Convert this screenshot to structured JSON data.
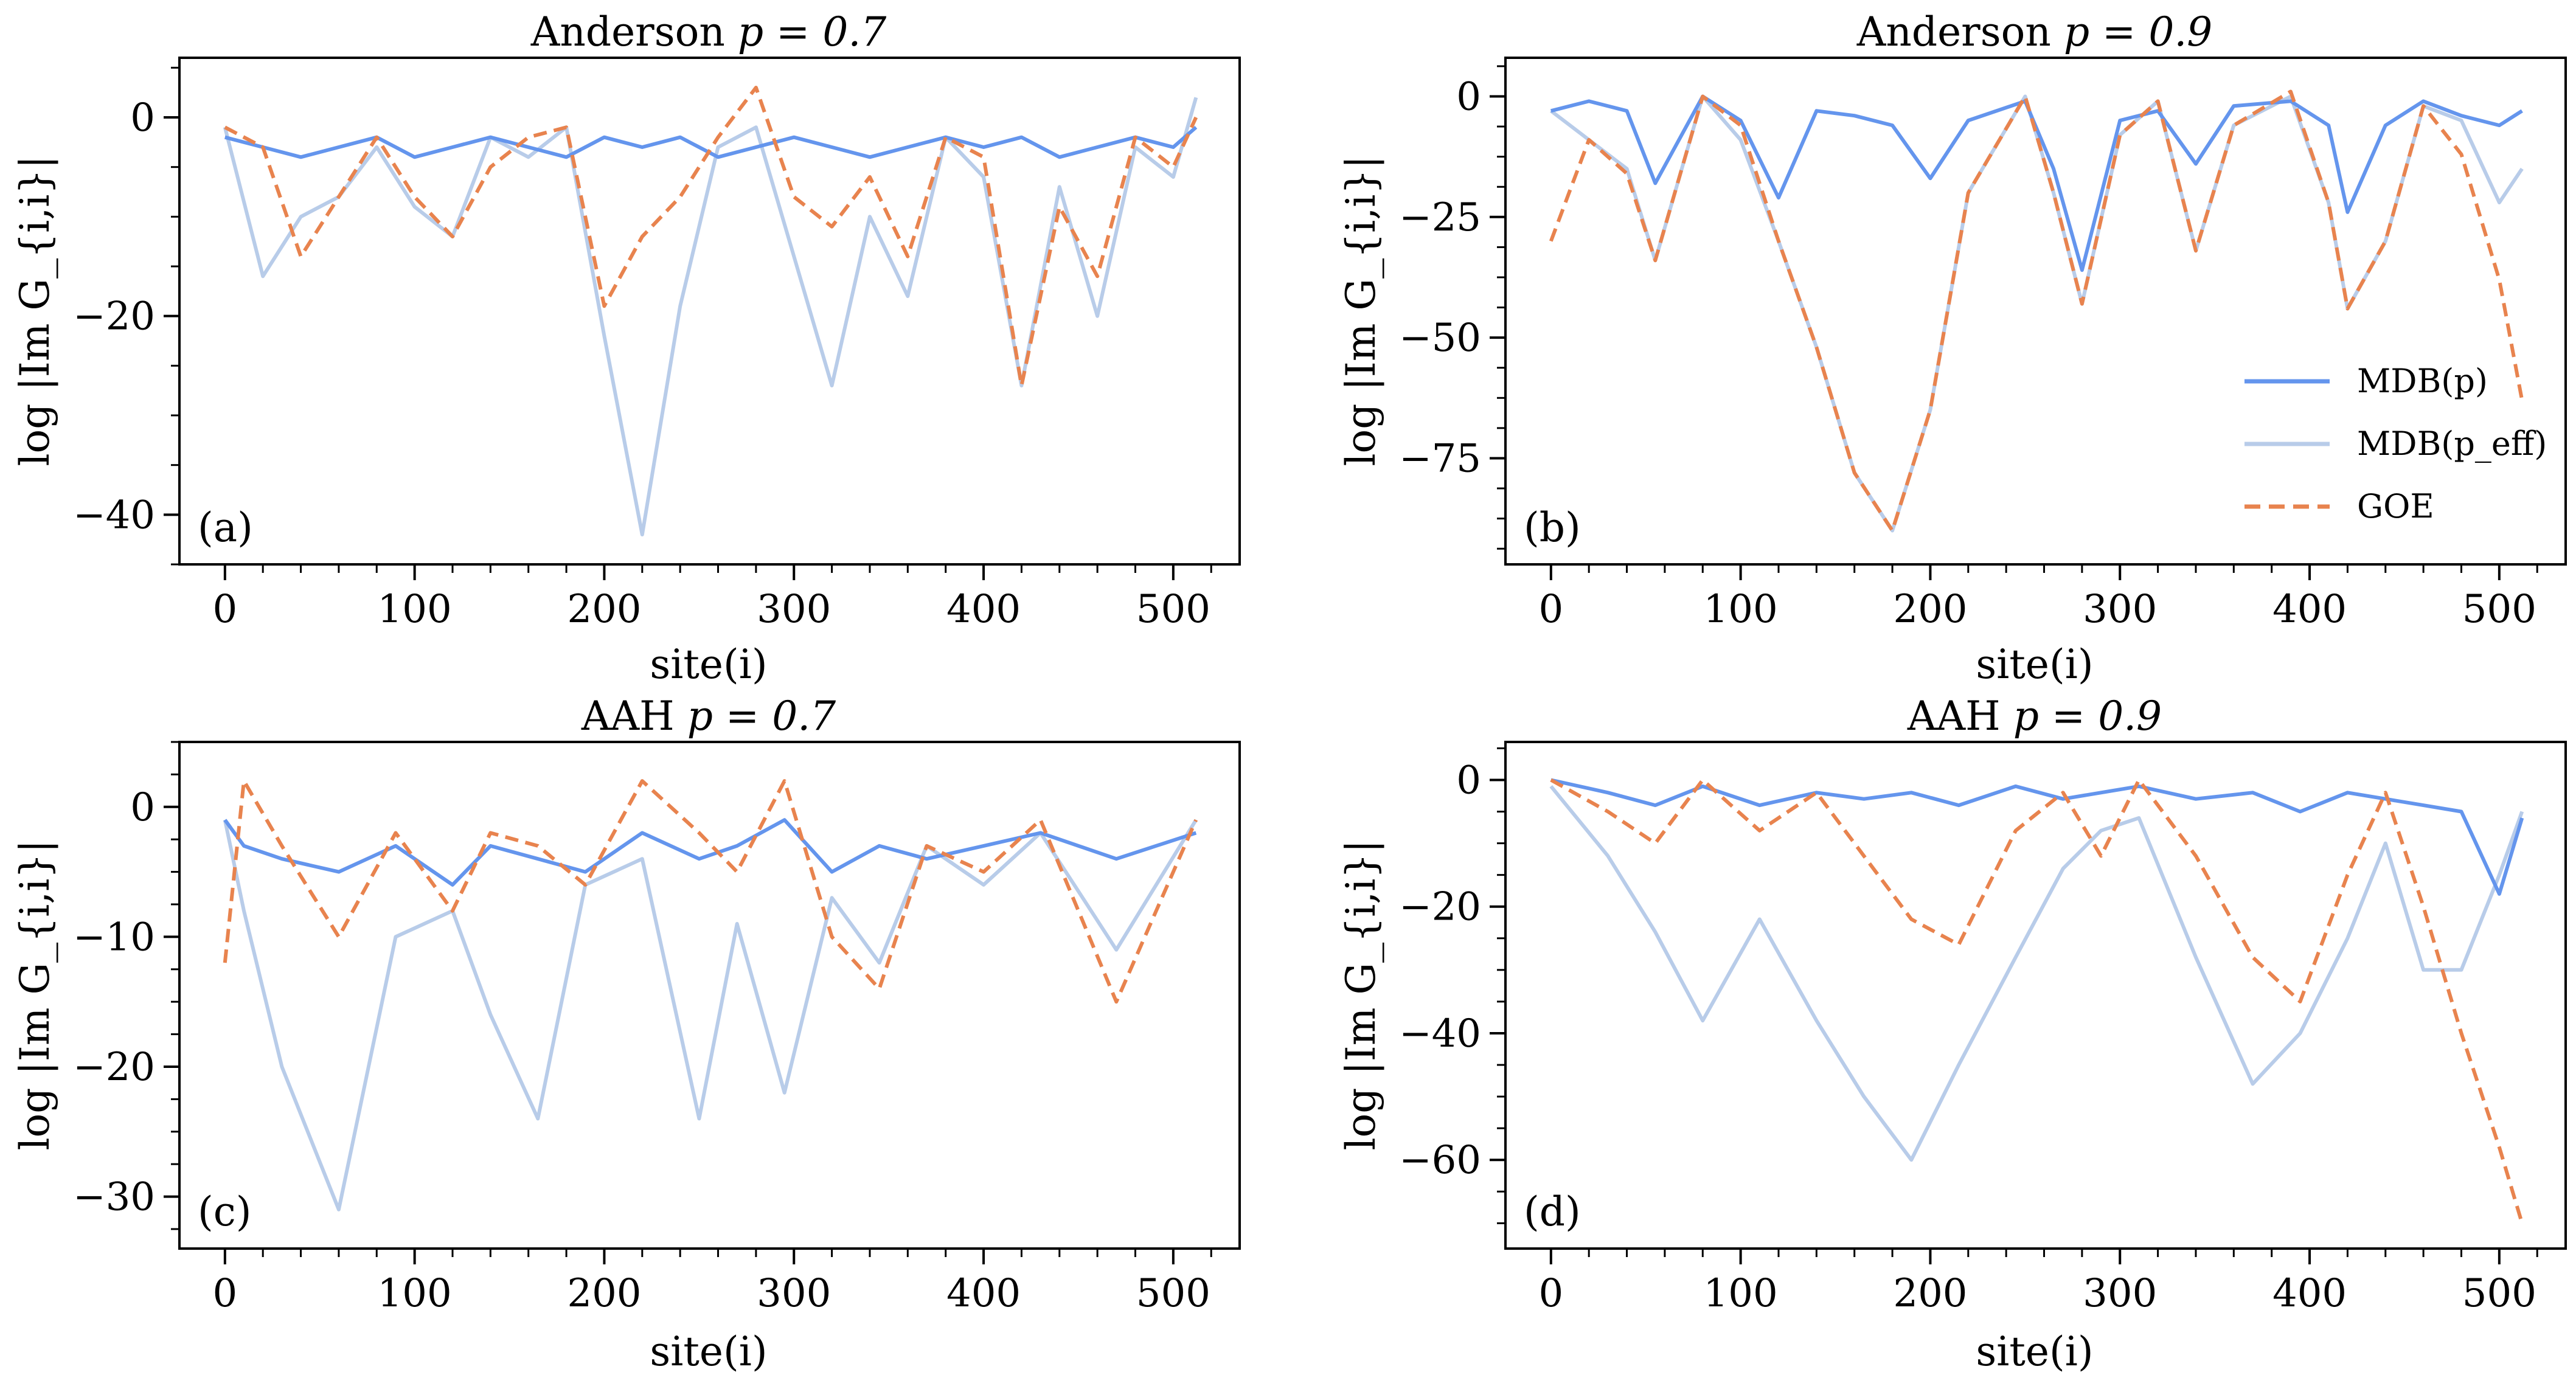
{
  "figure": {
    "legend": {
      "entries": [
        {
          "label": "MDB(p)",
          "series": "mdb_p"
        },
        {
          "label": "MDB(p_eff)",
          "series": "mdb_peff"
        },
        {
          "label": "GOE",
          "series": "goe"
        }
      ]
    },
    "colors": {
      "mdb_p": "#6495ED",
      "mdb_peff": "#B8CCE9",
      "goe": "#E8834E"
    }
  },
  "chart_data": [
    {
      "type": "line",
      "title": "Anderson p = 0.7",
      "title_prefix": "Anderson",
      "title_param": "p = 0.7",
      "panel_label": "(a)",
      "xlabel": "site(i)",
      "ylabel": "log |Im G_{i,i}|",
      "xlim": [
        -24,
        535
      ],
      "ylim": [
        -45,
        6
      ],
      "xticks": [
        0,
        100,
        200,
        300,
        400,
        500
      ],
      "yticks": [
        0,
        -20,
        -40
      ],
      "x": [
        0,
        20,
        40,
        60,
        80,
        100,
        120,
        140,
        160,
        180,
        200,
        220,
        240,
        260,
        280,
        300,
        320,
        340,
        360,
        380,
        400,
        420,
        440,
        460,
        480,
        500,
        512
      ],
      "series": [
        {
          "name": "MDB(p)",
          "key": "mdb_p",
          "values": [
            -2,
            -3,
            -4,
            -3,
            -2,
            -4,
            -3,
            -2,
            -3,
            -4,
            -2,
            -3,
            -2,
            -4,
            -3,
            -2,
            -3,
            -4,
            -3,
            -2,
            -3,
            -2,
            -4,
            -3,
            -2,
            -3,
            -1
          ]
        },
        {
          "name": "MDB(p_eff)",
          "key": "mdb_peff",
          "values": [
            -1,
            -16,
            -10,
            -8,
            -3,
            -9,
            -12,
            -2,
            -4,
            -1,
            -22,
            -42,
            -19,
            -3,
            -1,
            -14,
            -27,
            -10,
            -18,
            -2,
            -6,
            -27,
            -7,
            -20,
            -3,
            -6,
            2
          ]
        },
        {
          "name": "GOE",
          "key": "goe",
          "values": [
            -1,
            -3,
            -14,
            -8,
            -2,
            -8,
            -12,
            -5,
            -2,
            -1,
            -19,
            -12,
            -8,
            -2,
            3,
            -8,
            -11,
            -6,
            -14,
            -2,
            -4,
            -27,
            -9,
            -16,
            -2,
            -5,
            0
          ]
        }
      ]
    },
    {
      "type": "line",
      "title": "Anderson p = 0.9",
      "title_prefix": "Anderson",
      "title_param": "p = 0.9",
      "panel_label": "(b)",
      "xlabel": "site(i)",
      "ylabel": "log |Im G_{i,i}|",
      "xlim": [
        -24,
        535
      ],
      "ylim": [
        -97,
        8
      ],
      "xticks": [
        0,
        100,
        200,
        300,
        400,
        500
      ],
      "yticks": [
        0,
        -25,
        -50,
        -75
      ],
      "show_legend": true,
      "x": [
        0,
        20,
        40,
        55,
        80,
        100,
        120,
        140,
        160,
        180,
        200,
        220,
        250,
        265,
        280,
        300,
        320,
        340,
        360,
        390,
        410,
        420,
        440,
        460,
        480,
        500,
        512
      ],
      "series": [
        {
          "name": "MDB(p)",
          "key": "mdb_p",
          "values": [
            -3,
            -1,
            -3,
            -18,
            0,
            -5,
            -21,
            -3,
            -4,
            -6,
            -17,
            -5,
            -1,
            -15,
            -36,
            -5,
            -3,
            -14,
            -2,
            -1,
            -6,
            -24,
            -6,
            -1,
            -4,
            -6,
            -3
          ]
        },
        {
          "name": "MDB(p_eff)",
          "key": "mdb_peff",
          "values": [
            -3,
            -9,
            -15,
            -34,
            0,
            -9,
            -30,
            -52,
            -78,
            -90,
            -65,
            -20,
            0,
            -20,
            -43,
            -8,
            -1,
            -32,
            -6,
            0,
            -22,
            -44,
            -30,
            -2,
            -5,
            -22,
            -15
          ]
        },
        {
          "name": "GOE",
          "key": "goe",
          "values": [
            -30,
            -9,
            -16,
            -34,
            0,
            -6,
            -30,
            -52,
            -78,
            -90,
            -65,
            -20,
            0,
            -20,
            -43,
            -8,
            -1,
            -32,
            -6,
            1,
            -22,
            -44,
            -30,
            -2,
            -12,
            -38,
            -63
          ]
        }
      ]
    },
    {
      "type": "line",
      "title": "AAH p = 0.7",
      "title_prefix": "AAH",
      "title_param": "p = 0.7",
      "panel_label": "(c)",
      "xlabel": "site(i)",
      "ylabel": "log |Im G_{i,i}|",
      "xlim": [
        -24,
        535
      ],
      "ylim": [
        -34,
        5
      ],
      "xticks": [
        0,
        100,
        200,
        300,
        400,
        500
      ],
      "yticks": [
        0,
        -10,
        -20,
        -30
      ],
      "x": [
        0,
        10,
        30,
        60,
        90,
        120,
        140,
        165,
        190,
        220,
        250,
        270,
        295,
        320,
        345,
        370,
        400,
        430,
        470,
        512
      ],
      "series": [
        {
          "name": "MDB(p)",
          "key": "mdb_p",
          "values": [
            -1,
            -3,
            -4,
            -5,
            -3,
            -6,
            -3,
            -4,
            -5,
            -2,
            -4,
            -3,
            -1,
            -5,
            -3,
            -4,
            -3,
            -2,
            -4,
            -2
          ]
        },
        {
          "name": "MDB(p_eff)",
          "key": "mdb_peff",
          "values": [
            -1,
            -8,
            -20,
            -31,
            -10,
            -8,
            -16,
            -24,
            -6,
            -4,
            -24,
            -9,
            -22,
            -7,
            -12,
            -3,
            -6,
            -2,
            -11,
            -1
          ]
        },
        {
          "name": "GOE",
          "key": "goe",
          "values": [
            -12,
            2,
            -3,
            -10,
            -2,
            -8,
            -2,
            -3,
            -6,
            2,
            -2,
            -5,
            2,
            -10,
            -14,
            -3,
            -5,
            -1,
            -15,
            -1
          ]
        }
      ]
    },
    {
      "type": "line",
      "title": "AAH p = 0.9",
      "title_prefix": "AAH",
      "title_param": "p = 0.9",
      "panel_label": "(d)",
      "xlabel": "site(i)",
      "ylabel": "log |Im G_{i,i}|",
      "xlim": [
        -24,
        535
      ],
      "ylim": [
        -74,
        6
      ],
      "xticks": [
        0,
        100,
        200,
        300,
        400,
        500
      ],
      "yticks": [
        0,
        -20,
        -40,
        -60
      ],
      "x": [
        0,
        30,
        55,
        80,
        110,
        140,
        165,
        190,
        215,
        245,
        270,
        290,
        310,
        340,
        370,
        395,
        420,
        440,
        460,
        480,
        500,
        512
      ],
      "series": [
        {
          "name": "MDB(p)",
          "key": "mdb_p",
          "values": [
            0,
            -2,
            -4,
            -1,
            -4,
            -2,
            -3,
            -2,
            -4,
            -1,
            -3,
            -2,
            -1,
            -3,
            -2,
            -5,
            -2,
            -3,
            -4,
            -5,
            -18,
            -6
          ]
        },
        {
          "name": "MDB(p_eff)",
          "key": "mdb_peff",
          "values": [
            -1,
            -12,
            -24,
            -38,
            -22,
            -38,
            -50,
            -60,
            -45,
            -28,
            -14,
            -8,
            -6,
            -28,
            -48,
            -40,
            -25,
            -10,
            -30,
            -30,
            -15,
            -5
          ]
        },
        {
          "name": "GOE",
          "key": "goe",
          "values": [
            0,
            -5,
            -10,
            0,
            -8,
            -2,
            -12,
            -22,
            -26,
            -8,
            -2,
            -12,
            0,
            -12,
            -28,
            -35,
            -15,
            -2,
            -20,
            -40,
            -58,
            -70
          ]
        }
      ]
    }
  ]
}
